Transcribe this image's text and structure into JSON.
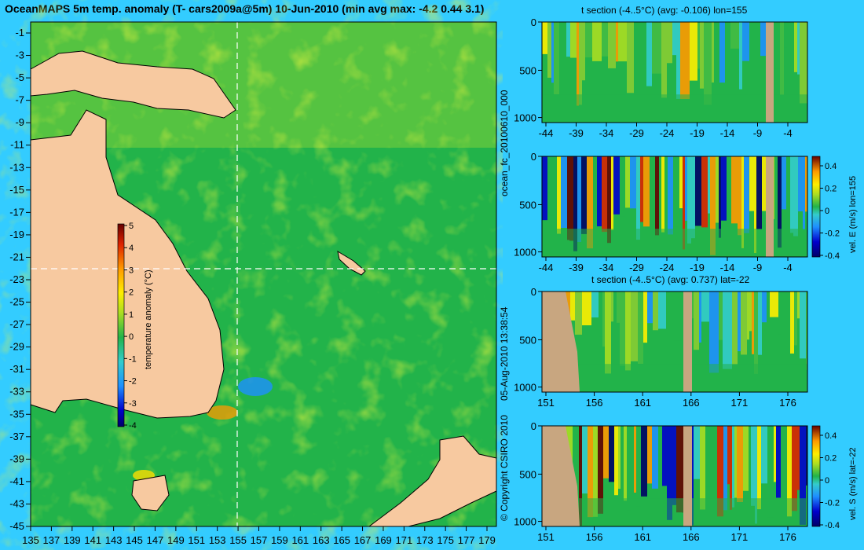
{
  "main_title": "OceanMAPS 5m temp. anomaly (T- cars2009a@5m) 10-Jun-2010 (min avg max: -4.2 0.44 3.1)",
  "map": {
    "lat_ticks": [
      "-1",
      "-3",
      "-5",
      "-7",
      "-9",
      "-11",
      "-13",
      "-15",
      "-17",
      "-19",
      "-21",
      "-23",
      "-25",
      "-27",
      "-29",
      "-31",
      "-33",
      "-35",
      "-37",
      "-39",
      "-41",
      "-43",
      "-45"
    ],
    "lon_ticks": [
      "135",
      "137",
      "139",
      "141",
      "143",
      "145",
      "147",
      "149",
      "151",
      "153",
      "155",
      "157",
      "159",
      "161",
      "163",
      "165",
      "167",
      "169",
      "171",
      "173",
      "175",
      "177",
      "179"
    ],
    "colorbar_ticks": [
      "5",
      "4",
      "3",
      "2",
      "1",
      "0",
      "-1",
      "-2",
      "-3",
      "-4"
    ],
    "colorbar_label": "temperature anomaly (°C)",
    "colors": {
      "land": "#f7c9a0",
      "ocean": "#22b34a",
      "coast": "#000000"
    }
  },
  "panels": [
    {
      "title": "t section (-4..5°C) (avg: -0.106) lon=155",
      "y_ticks": [
        "0",
        "500",
        "1000"
      ],
      "x_ticks": [
        "-44",
        "-39",
        "-34",
        "-29",
        "-24",
        "-19",
        "-14",
        "-9",
        "-4"
      ]
    },
    {
      "title": "",
      "y_ticks": [
        "0",
        "500",
        "1000"
      ],
      "x_ticks": [
        "-44",
        "-39",
        "-34",
        "-29",
        "-24",
        "-19",
        "-14",
        "-9",
        "-4"
      ],
      "colorbar_ticks": [
        "0.4",
        "0.2",
        "0",
        "-0.2",
        "-0.4"
      ],
      "colorbar_label": "vel. E (m/s) lon=155"
    },
    {
      "title": "t section (-4..5°C) (avg: 0.737) lat=-22",
      "y_ticks": [
        "0",
        "500",
        "1000"
      ],
      "x_ticks": [
        "151",
        "156",
        "161",
        "166",
        "171",
        "176"
      ]
    },
    {
      "title": "",
      "y_ticks": [
        "0",
        "500",
        "1000"
      ],
      "x_ticks": [
        "151",
        "156",
        "161",
        "166",
        "171",
        "176"
      ],
      "colorbar_ticks": [
        "0.4",
        "0.2",
        "0",
        "-0.2",
        "-0.4"
      ],
      "colorbar_label": "vel. S (m/s) lat=-22"
    }
  ],
  "side_labels": {
    "run_id": "ocean_fc_20100610_000",
    "timestamp": "05-Aug-2010 13:38:54",
    "copyright": "© Copyright CSIRO 2010"
  }
}
